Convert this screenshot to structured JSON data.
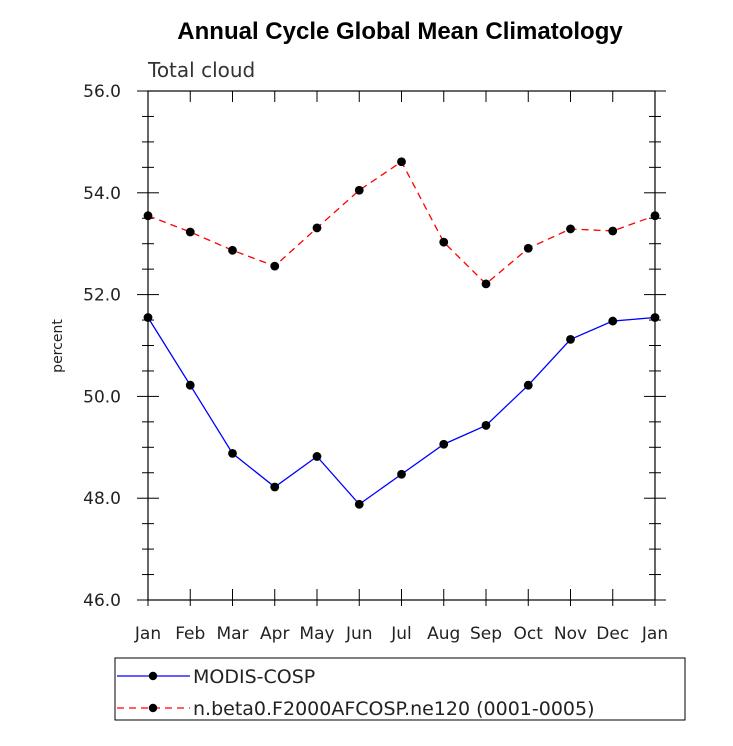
{
  "chart_data": {
    "type": "line",
    "title": "Annual Cycle Global Mean Climatology",
    "subtitle": "Total cloud",
    "xlabel": "",
    "ylabel": "percent",
    "categories": [
      "Jan",
      "Feb",
      "Mar",
      "Apr",
      "May",
      "Jun",
      "Jul",
      "Aug",
      "Sep",
      "Oct",
      "Nov",
      "Dec",
      "Jan"
    ],
    "ylim": [
      46.0,
      56.0
    ],
    "yticks": [
      "46.0",
      "48.0",
      "50.0",
      "52.0",
      "54.0",
      "56.0"
    ],
    "ytick_values": [
      46,
      48,
      50,
      52,
      54,
      56
    ],
    "series": [
      {
        "name": "MODIS-COSP",
        "color": "#0000ff",
        "dash": "solid",
        "values": [
          51.55,
          50.22,
          48.88,
          48.22,
          48.82,
          47.88,
          48.47,
          49.06,
          49.43,
          50.22,
          51.12,
          51.48,
          51.55
        ]
      },
      {
        "name": "n.beta0.F2000AFCOSP.ne120 (0001-0005)",
        "color": "#ff0000",
        "dash": "dashed",
        "values": [
          53.55,
          53.23,
          52.87,
          52.56,
          53.31,
          54.05,
          54.61,
          53.03,
          52.21,
          52.91,
          53.29,
          53.25,
          53.55
        ]
      }
    ],
    "legend_position": "bottom-left"
  }
}
